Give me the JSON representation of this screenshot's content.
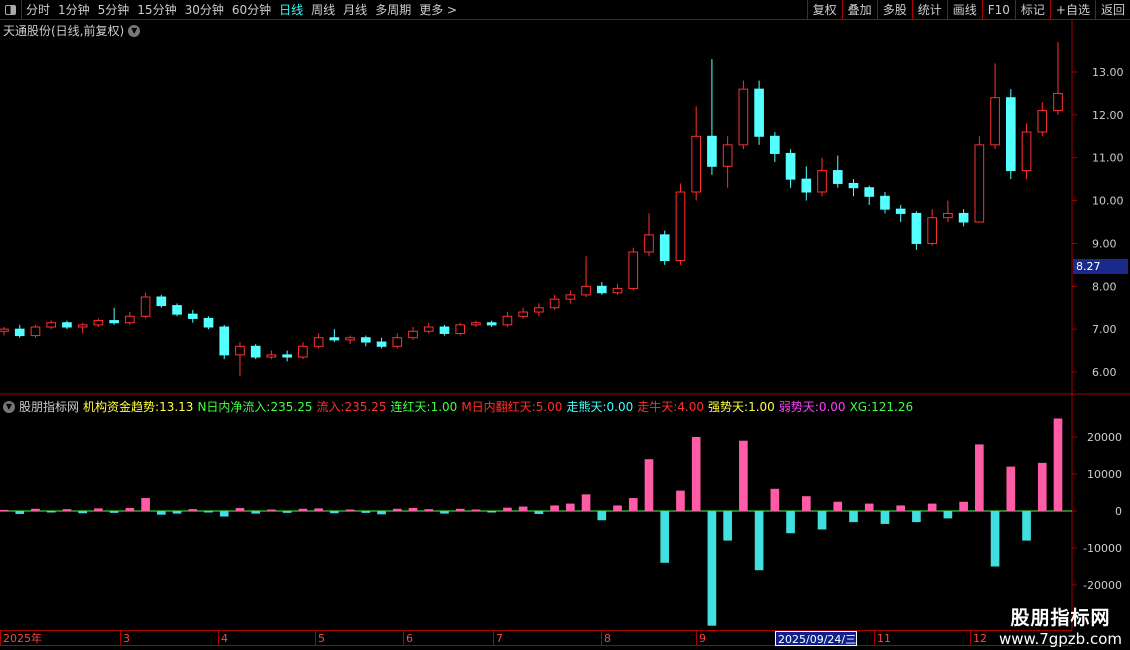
{
  "toolbar": {
    "periods": [
      "分时",
      "1分钟",
      "5分钟",
      "15分钟",
      "30分钟",
      "60分钟",
      "日线",
      "周线",
      "月线",
      "多周期",
      "更多 >"
    ],
    "active": "日线",
    "actions": [
      "复权",
      "叠加",
      "多股",
      "统计",
      "画线",
      "F10",
      "标记",
      "+自选",
      "返回"
    ]
  },
  "title": "天通股份(日线,前复权)",
  "current_price": "8.27",
  "indicator": {
    "name": "股朋指标网",
    "items": [
      {
        "label": "机构资金趋势",
        "value": "13.13",
        "color": "#ffff40"
      },
      {
        "label": "N日内净流入",
        "value": "235.25",
        "color": "#40ff40"
      },
      {
        "label": "流入",
        "value": "235.25",
        "color": "#ff3030"
      },
      {
        "label": "连红天",
        "value": "1.00",
        "color": "#40ff40"
      },
      {
        "label": "M日内翻红天",
        "value": "5.00",
        "color": "#ff3030"
      },
      {
        "label": "走熊天",
        "value": "0.00",
        "color": "#40ffff"
      },
      {
        "label": "走牛天",
        "value": "4.00",
        "color": "#ff3030"
      },
      {
        "label": "强势天",
        "value": "1.00",
        "color": "#ffff40"
      },
      {
        "label": "弱势天",
        "value": "0.00",
        "color": "#ff40ff"
      },
      {
        "label": "XG",
        "value": "121.26",
        "color": "#40ff40"
      }
    ]
  },
  "dates": [
    "2025年",
    "3",
    "4",
    "5",
    "6",
    "7",
    "8",
    "9",
    "2025/09/24/三",
    "11",
    "12"
  ],
  "selected_date": "2025/09/24/三",
  "watermark": {
    "name": "股朋指标网",
    "url": "www.7gpzb.com"
  },
  "colors": {
    "up": "#ff3030",
    "down": "#54ffff",
    "flow_pos": "#ff5ca8",
    "flow_neg": "#40e0e0",
    "axis": "#aa0000"
  },
  "chart_data": {
    "type": "candlestick",
    "price_ticks": [
      "6.00",
      "7.00",
      "8.00",
      "9.00",
      "10.00",
      "11.00",
      "12.00",
      "13.00"
    ],
    "flow_ticks": [
      "-20000",
      "-10000",
      "0",
      "10000",
      "20000"
    ],
    "ohlc": [
      [
        6.95,
        7.05,
        6.85,
        7.0
      ],
      [
        7.0,
        7.1,
        6.8,
        6.85
      ],
      [
        6.85,
        7.1,
        6.8,
        7.05
      ],
      [
        7.05,
        7.2,
        7.0,
        7.15
      ],
      [
        7.15,
        7.2,
        7.0,
        7.05
      ],
      [
        7.05,
        7.15,
        6.9,
        7.1
      ],
      [
        7.1,
        7.25,
        7.05,
        7.2
      ],
      [
        7.2,
        7.5,
        7.1,
        7.15
      ],
      [
        7.15,
        7.4,
        7.1,
        7.3
      ],
      [
        7.3,
        7.85,
        7.25,
        7.75
      ],
      [
        7.75,
        7.8,
        7.5,
        7.55
      ],
      [
        7.55,
        7.6,
        7.3,
        7.35
      ],
      [
        7.35,
        7.45,
        7.15,
        7.25
      ],
      [
        7.25,
        7.3,
        7.0,
        7.05
      ],
      [
        7.05,
        7.1,
        6.3,
        6.4
      ],
      [
        6.4,
        6.7,
        5.9,
        6.6
      ],
      [
        6.6,
        6.65,
        6.3,
        6.35
      ],
      [
        6.35,
        6.5,
        6.3,
        6.4
      ],
      [
        6.4,
        6.5,
        6.25,
        6.35
      ],
      [
        6.35,
        6.7,
        6.3,
        6.6
      ],
      [
        6.6,
        6.9,
        6.55,
        6.8
      ],
      [
        6.8,
        7.0,
        6.7,
        6.75
      ],
      [
        6.75,
        6.85,
        6.65,
        6.8
      ],
      [
        6.8,
        6.85,
        6.6,
        6.7
      ],
      [
        6.7,
        6.8,
        6.55,
        6.6
      ],
      [
        6.6,
        6.9,
        6.55,
        6.8
      ],
      [
        6.8,
        7.05,
        6.75,
        6.95
      ],
      [
        6.95,
        7.15,
        6.9,
        7.05
      ],
      [
        7.05,
        7.1,
        6.85,
        6.9
      ],
      [
        6.9,
        7.15,
        6.85,
        7.1
      ],
      [
        7.1,
        7.2,
        7.05,
        7.15
      ],
      [
        7.15,
        7.2,
        7.05,
        7.1
      ],
      [
        7.1,
        7.4,
        7.05,
        7.3
      ],
      [
        7.3,
        7.5,
        7.25,
        7.4
      ],
      [
        7.4,
        7.6,
        7.3,
        7.5
      ],
      [
        7.5,
        7.8,
        7.45,
        7.7
      ],
      [
        7.7,
        7.9,
        7.6,
        7.8
      ],
      [
        7.8,
        8.7,
        7.75,
        8.0
      ],
      [
        8.0,
        8.1,
        7.8,
        7.85
      ],
      [
        7.85,
        8.05,
        7.8,
        7.95
      ],
      [
        7.95,
        8.9,
        7.9,
        8.8
      ],
      [
        8.8,
        9.7,
        8.7,
        9.2
      ],
      [
        9.2,
        9.3,
        8.5,
        8.6
      ],
      [
        8.6,
        10.4,
        8.5,
        10.2
      ],
      [
        10.2,
        12.2,
        10.0,
        11.5
      ],
      [
        11.5,
        13.3,
        10.6,
        10.8
      ],
      [
        10.8,
        11.5,
        10.3,
        11.3
      ],
      [
        11.3,
        12.8,
        11.2,
        12.6
      ],
      [
        12.6,
        12.8,
        11.3,
        11.5
      ],
      [
        11.5,
        11.6,
        10.9,
        11.1
      ],
      [
        11.1,
        11.2,
        10.3,
        10.5
      ],
      [
        10.5,
        10.8,
        10.0,
        10.2
      ],
      [
        10.2,
        11.0,
        10.1,
        10.7
      ],
      [
        10.7,
        11.05,
        10.3,
        10.4
      ],
      [
        10.4,
        10.5,
        10.1,
        10.3
      ],
      [
        10.3,
        10.35,
        9.9,
        10.1
      ],
      [
        10.1,
        10.2,
        9.7,
        9.8
      ],
      [
        9.8,
        9.9,
        9.5,
        9.7
      ],
      [
        9.7,
        9.75,
        8.85,
        9.0
      ],
      [
        9.0,
        9.8,
        8.95,
        9.6
      ],
      [
        9.6,
        10.0,
        9.5,
        9.7
      ],
      [
        9.7,
        9.8,
        9.4,
        9.5
      ],
      [
        9.5,
        11.5,
        9.5,
        11.3
      ],
      [
        11.3,
        13.2,
        11.2,
        12.4
      ],
      [
        12.4,
        12.6,
        10.5,
        10.7
      ],
      [
        10.7,
        11.8,
        10.5,
        11.6
      ],
      [
        11.6,
        12.3,
        11.5,
        12.1
      ],
      [
        12.1,
        13.7,
        12.0,
        12.5
      ]
    ],
    "flow": [
      300,
      -800,
      600,
      -400,
      500,
      -600,
      700,
      -500,
      800,
      3500,
      -1000,
      -700,
      500,
      -400,
      -1500,
      800,
      -700,
      400,
      -500,
      600,
      700,
      -600,
      400,
      -500,
      -900,
      600,
      800,
      500,
      -700,
      600,
      400,
      -400,
      900,
      1200,
      -800,
      1500,
      2000,
      4500,
      -2500,
      1500,
      3500,
      14000,
      -14000,
      5500,
      20000,
      -31000,
      -8000,
      19000,
      -16000,
      6000,
      -6000,
      4000,
      -5000,
      2500,
      -3000,
      2000,
      -3500,
      1500,
      -3000,
      2000,
      -2000,
      2500,
      18000,
      -15000,
      12000,
      -8000,
      13000,
      25000
    ]
  }
}
